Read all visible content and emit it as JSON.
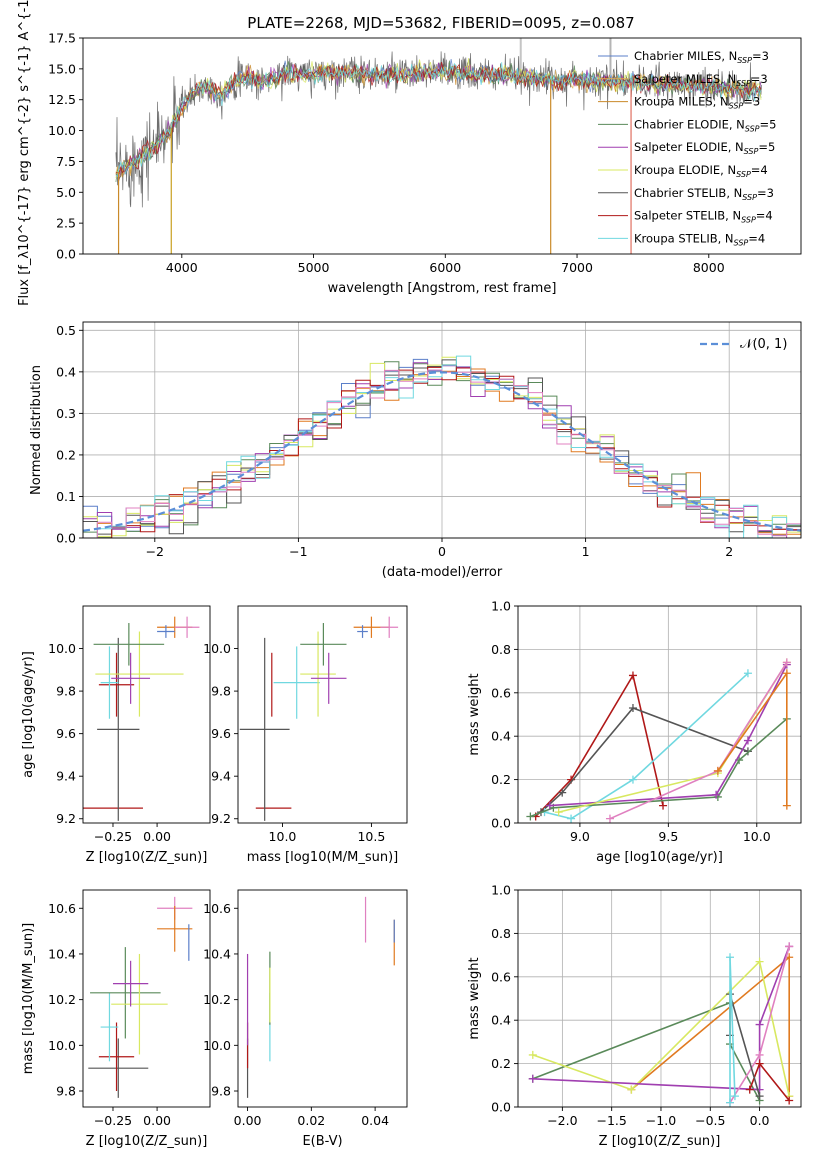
{
  "colors": {
    "Chabrier MILES": "#5b7fc9",
    "Salpeter MILES": "#e0b050",
    "Kroupa MILES": "#c98a2a",
    "Chabrier ELODIE": "#5a8a5a",
    "Salpeter ELODIE": "#a03fb0",
    "Kroupa ELODIE": "#d8e860",
    "Chabrier STELIB": "#555555",
    "Salpeter STELIB": "#b01818",
    "Kroupa STELIB": "#70d8e0",
    "pink": "#e080c0",
    "orange": "#e07a20",
    "normal": "#5b8fd8"
  },
  "chart_data": [
    {
      "id": "spectrum",
      "type": "line",
      "title": "PLATE=2268, MJD=53682, FIBERID=0095, z=0.087",
      "xlabel": "wavelength [Angstrom, rest frame]",
      "ylabel": "Flux [f_λ10^{-17} erg cm^{-2} s^{-1} A^{-1}]",
      "xlim": [
        3250,
        8700
      ],
      "ylim": [
        0,
        17.5
      ],
      "xticks": [
        "4000",
        "5000",
        "6000",
        "7000",
        "8000"
      ],
      "yticks": [
        "0.0",
        "2.5",
        "5.0",
        "7.5",
        "10.0",
        "12.5",
        "15.0",
        "17.5"
      ],
      "legend_position": "right",
      "series": [
        {
          "name": "Chabrier MILES, N",
          "sub": "SSP",
          "suffix": "=3"
        },
        {
          "name": "Salpeter MILES, N",
          "sub": "SSP",
          "suffix": "=3"
        },
        {
          "name": "Kroupa MILES, N",
          "sub": "SSP",
          "suffix": "=3"
        },
        {
          "name": "Chabrier ELODIE, N",
          "sub": "SSP",
          "suffix": "=5"
        },
        {
          "name": "Salpeter ELODIE, N",
          "sub": "SSP",
          "suffix": "=5"
        },
        {
          "name": "Kroupa ELODIE, N",
          "sub": "SSP",
          "suffix": "=4"
        },
        {
          "name": "Chabrier STELIB, N",
          "sub": "SSP",
          "suffix": "=3"
        },
        {
          "name": "Salpeter STELIB, N",
          "sub": "SSP",
          "suffix": "=4"
        },
        {
          "name": "Kroupa STELIB, N",
          "sub": "SSP",
          "suffix": "=4"
        }
      ],
      "envelope": {
        "x": [
          3500,
          3600,
          3700,
          3800,
          3900,
          4000,
          4100,
          4200,
          4300,
          4400,
          4500,
          4600,
          4700,
          4800,
          4900,
          5000,
          5200,
          5400,
          5600,
          5800,
          6000,
          6200,
          6400,
          6600,
          6800,
          7000,
          7200,
          7400,
          7600,
          7800,
          8000,
          8200,
          8400
        ],
        "y": [
          6.5,
          7.2,
          8.0,
          8.8,
          9.8,
          11.8,
          13.2,
          13.6,
          12.8,
          14.0,
          14.3,
          13.9,
          14.3,
          14.7,
          14.5,
          14.6,
          14.7,
          14.6,
          14.5,
          14.6,
          14.8,
          14.6,
          14.5,
          14.4,
          14.1,
          14.1,
          14.0,
          13.9,
          13.8,
          13.7,
          13.6,
          13.4,
          13.2
        ]
      },
      "drops": [
        3520,
        3920,
        6800,
        7410
      ]
    },
    {
      "id": "residuals",
      "type": "line",
      "xlabel": "(data-model)/error",
      "ylabel": "Normed distribution",
      "xlim": [
        -2.5,
        2.5
      ],
      "ylim": [
        0,
        0.52
      ],
      "xticks": [
        "−2",
        "−1",
        "0",
        "1",
        "2"
      ],
      "yticks": [
        "0.0",
        "0.1",
        "0.2",
        "0.3",
        "0.4",
        "0.5"
      ],
      "legend": "𝒩(0, 1)",
      "legend_position": "top-right",
      "grid": true,
      "bin_width": 0.1
    },
    {
      "id": "age-vs-Z",
      "type": "scatter",
      "xlabel": "Z [log10(Z/Z_sun)]",
      "ylabel": "age [log10(age/yr)]",
      "xlim": [
        -0.42,
        0.3
      ],
      "ylim": [
        9.18,
        10.2
      ],
      "xticks": [
        "−0.25",
        "0.00"
      ],
      "yticks": [
        "9.2",
        "9.4",
        "9.6",
        "9.8",
        "10.0"
      ],
      "points": [
        {
          "x": -0.25,
          "y": 9.25,
          "ex": 0.17,
          "ey": 0,
          "color": "Salpeter STELIB"
        },
        {
          "x": -0.22,
          "y": 9.62,
          "ex": 0.12,
          "ey": 0.43,
          "color": "Chabrier STELIB"
        },
        {
          "x": -0.23,
          "y": 9.83,
          "ex": 0.1,
          "ey": 0.15,
          "color": "Salpeter STELIB"
        },
        {
          "x": -0.27,
          "y": 9.84,
          "ex": 0.05,
          "ey": 0.17,
          "color": "Kroupa STELIB"
        },
        {
          "x": -0.1,
          "y": 9.88,
          "ex": 0.25,
          "ey": 0.2,
          "color": "Kroupa ELODIE"
        },
        {
          "x": -0.15,
          "y": 9.86,
          "ex": 0.11,
          "ey": 0.12,
          "color": "Salpeter ELODIE"
        },
        {
          "x": -0.16,
          "y": 10.02,
          "ex": 0.2,
          "ey": 0.1,
          "color": "Chabrier ELODIE"
        },
        {
          "x": 0.1,
          "y": 10.1,
          "ex": 0.1,
          "ey": 0.05,
          "color": "orange"
        },
        {
          "x": 0.17,
          "y": 10.1,
          "ex": 0.07,
          "ey": 0.05,
          "color": "pink"
        },
        {
          "x": 0.05,
          "y": 10.08,
          "ex": 0.05,
          "ey": 0.03,
          "color": "Chabrier MILES"
        }
      ]
    },
    {
      "id": "age-vs-mass",
      "type": "scatter",
      "xlabel": "mass [log10(M/M_sun)]",
      "xlim": [
        9.75,
        10.7
      ],
      "ylim": [
        9.18,
        10.2
      ],
      "xticks": [
        "10.0",
        "10.5"
      ],
      "yticks": [
        "9.2",
        "9.4",
        "9.6",
        "9.8",
        "10.0"
      ],
      "points": [
        {
          "x": 9.95,
          "y": 9.25,
          "ex": 0.1,
          "ey": 0,
          "color": "Salpeter STELIB"
        },
        {
          "x": 9.9,
          "y": 9.62,
          "ex": 0.14,
          "ey": 0.43,
          "color": "Chabrier STELIB"
        },
        {
          "x": 9.94,
          "y": 9.83,
          "ex": 0.0,
          "ey": 0.15,
          "color": "Salpeter STELIB"
        },
        {
          "x": 10.08,
          "y": 9.84,
          "ex": 0.13,
          "ey": 0.17,
          "color": "Kroupa STELIB"
        },
        {
          "x": 10.2,
          "y": 9.88,
          "ex": 0.1,
          "ey": 0.2,
          "color": "Kroupa ELODIE"
        },
        {
          "x": 10.26,
          "y": 9.86,
          "ex": 0.1,
          "ey": 0.12,
          "color": "Salpeter ELODIE"
        },
        {
          "x": 10.23,
          "y": 10.02,
          "ex": 0.13,
          "ey": 0.1,
          "color": "Chabrier ELODIE"
        },
        {
          "x": 10.5,
          "y": 10.1,
          "ex": 0.1,
          "ey": 0.05,
          "color": "orange"
        },
        {
          "x": 10.6,
          "y": 10.1,
          "ex": 0.05,
          "ey": 0.05,
          "color": "pink"
        },
        {
          "x": 10.45,
          "y": 10.08,
          "ex": 0.03,
          "ey": 0.03,
          "color": "Chabrier MILES"
        }
      ]
    },
    {
      "id": "massweight-vs-age",
      "type": "line",
      "xlabel": "age [log10(age/yr)]",
      "ylabel": "mass weight",
      "xlim": [
        8.65,
        10.25
      ],
      "ylim": [
        0,
        1.0
      ],
      "xticks": [
        "9.0",
        "9.5",
        "10.0"
      ],
      "yticks": [
        "0.0",
        "0.2",
        "0.4",
        "0.6",
        "0.8",
        "1.0"
      ],
      "grid": true,
      "series": [
        {
          "color": "Salpeter STELIB",
          "x": [
            8.75,
            8.95,
            9.3,
            9.47
          ],
          "y": [
            0.03,
            0.2,
            0.68,
            0.08
          ]
        },
        {
          "color": "Chabrier STELIB",
          "x": [
            8.78,
            8.9,
            9.3,
            9.95
          ],
          "y": [
            0.05,
            0.14,
            0.53,
            0.33
          ]
        },
        {
          "color": "Kroupa STELIB",
          "x": [
            8.8,
            8.95,
            9.3,
            9.95
          ],
          "y": [
            0.05,
            0.02,
            0.2,
            0.69
          ]
        },
        {
          "color": "Chabrier ELODIE",
          "x": [
            8.72,
            8.85,
            9.78,
            9.9,
            10.17
          ],
          "y": [
            0.03,
            0.07,
            0.12,
            0.29,
            0.48
          ]
        },
        {
          "color": "Salpeter ELODIE",
          "x": [
            8.83,
            9.77,
            9.95,
            10.17
          ],
          "y": [
            0.08,
            0.13,
            0.38,
            0.73
          ]
        },
        {
          "color": "Kroupa ELODIE",
          "x": [
            8.88,
            9.78,
            10.17
          ],
          "y": [
            0.05,
            0.23,
            0.74
          ]
        },
        {
          "color": "pink",
          "x": [
            9.17,
            9.78,
            10.17
          ],
          "y": [
            0.02,
            0.24,
            0.74
          ]
        },
        {
          "color": "orange",
          "x": [
            9.78,
            10.17,
            10.17
          ],
          "y": [
            0.24,
            0.69,
            0.08
          ]
        }
      ]
    },
    {
      "id": "mass-vs-Z",
      "type": "scatter",
      "xlabel": "Z [log10(Z/Z_sun)]",
      "ylabel": "mass [log10(M/M_sun)]",
      "xlim": [
        -0.42,
        0.3
      ],
      "ylim": [
        9.73,
        10.68
      ],
      "xticks": [
        "−0.25",
        "0.00"
      ],
      "yticks": [
        "9.8",
        "10.0",
        "10.2",
        "10.4",
        "10.6"
      ],
      "points": [
        {
          "x": -0.22,
          "y": 9.9,
          "ex": 0.17,
          "ey": 0.13,
          "color": "Chabrier STELIB"
        },
        {
          "x": -0.23,
          "y": 9.95,
          "ex": 0.1,
          "ey": 0.15,
          "color": "Salpeter STELIB"
        },
        {
          "x": -0.27,
          "y": 10.08,
          "ex": 0.05,
          "ey": 0.15,
          "color": "Kroupa STELIB"
        },
        {
          "x": -0.18,
          "y": 10.23,
          "ex": 0.2,
          "ey": 0.2,
          "color": "Chabrier ELODIE"
        },
        {
          "x": -0.1,
          "y": 10.18,
          "ex": 0.16,
          "ey": 0.22,
          "color": "Kroupa ELODIE"
        },
        {
          "x": -0.15,
          "y": 10.27,
          "ex": 0.1,
          "ey": 0.1,
          "color": "Salpeter ELODIE"
        },
        {
          "x": 0.1,
          "y": 10.6,
          "ex": 0.1,
          "ey": 0.05,
          "color": "pink"
        },
        {
          "x": 0.1,
          "y": 10.51,
          "ex": 0.1,
          "ey": 0.1,
          "color": "orange"
        },
        {
          "x": 0.18,
          "y": 10.45,
          "ex": 0.0,
          "ey": 0.08,
          "color": "Chabrier MILES"
        }
      ]
    },
    {
      "id": "mass-vs-EBV",
      "type": "scatter",
      "xlabel": "E(B-V)",
      "xlim": [
        -0.003,
        0.05
      ],
      "ylim": [
        9.73,
        10.68
      ],
      "xticks": [
        "0.00",
        "0.02",
        "0.04"
      ],
      "yticks": [
        "9.8",
        "10.0",
        "10.2",
        "10.4",
        "10.6"
      ],
      "points": [
        {
          "x": 0.0,
          "y": 9.9,
          "ex": 0,
          "ey": 0.13,
          "color": "Chabrier STELIB"
        },
        {
          "x": 0.0,
          "y": 10.0,
          "ex": 0,
          "ey": 0.1,
          "color": "Salpeter STELIB"
        },
        {
          "x": 0.0,
          "y": 10.2,
          "ex": 0,
          "ey": 0.2,
          "color": "Salpeter ELODIE"
        },
        {
          "x": 0.007,
          "y": 10.08,
          "ex": 0,
          "ey": 0.15,
          "color": "Kroupa STELIB"
        },
        {
          "x": 0.007,
          "y": 10.25,
          "ex": 0,
          "ey": 0.16,
          "color": "Chabrier ELODIE"
        },
        {
          "x": 0.007,
          "y": 10.22,
          "ex": 0,
          "ey": 0.12,
          "color": "Kroupa ELODIE"
        },
        {
          "x": 0.037,
          "y": 10.55,
          "ex": 0,
          "ey": 0.1,
          "color": "pink"
        },
        {
          "x": 0.046,
          "y": 10.45,
          "ex": 0,
          "ey": 0.1,
          "color": "orange"
        },
        {
          "x": 0.046,
          "y": 10.5,
          "ex": 0,
          "ey": 0.05,
          "color": "Chabrier MILES"
        }
      ]
    },
    {
      "id": "massweight-vs-Z",
      "type": "line",
      "xlabel": "Z [log10(Z/Z_sun)]",
      "ylabel": "mass weight",
      "xlim": [
        -2.45,
        0.42
      ],
      "ylim": [
        0,
        1.0
      ],
      "xticks": [
        "−2.0",
        "−1.5",
        "−1.0",
        "−0.5",
        "0.0"
      ],
      "yticks": [
        "0.0",
        "0.2",
        "0.4",
        "0.6",
        "0.8",
        "1.0"
      ],
      "grid": true,
      "series": [
        {
          "color": "Chabrier ELODIE",
          "x": [
            -2.3,
            -0.3,
            -0.3,
            0.0
          ],
          "y": [
            0.13,
            0.48,
            0.29,
            0.03
          ]
        },
        {
          "color": "orange",
          "x": [
            -1.3,
            0.3,
            0.3
          ],
          "y": [
            0.08,
            0.69,
            0.05
          ]
        },
        {
          "color": "Kroupa ELODIE",
          "x": [
            -2.3,
            -1.3,
            0.0,
            0.3
          ],
          "y": [
            0.24,
            0.08,
            0.67,
            0.05
          ]
        },
        {
          "color": "Salpeter ELODIE",
          "x": [
            -2.3,
            0.0,
            0.0,
            0.3
          ],
          "y": [
            0.13,
            0.08,
            0.38,
            0.74
          ]
        },
        {
          "color": "pink",
          "x": [
            -0.3,
            0.0,
            0.3
          ],
          "y": [
            0.02,
            0.24,
            0.74
          ]
        },
        {
          "color": "Salpeter STELIB",
          "x": [
            -0.1,
            0.0,
            0.3
          ],
          "y": [
            0.08,
            0.2,
            0.03
          ]
        },
        {
          "color": "Chabrier STELIB",
          "x": [
            -0.3,
            -0.3,
            0.0
          ],
          "y": [
            0.33,
            0.52,
            0.05
          ]
        },
        {
          "color": "Kroupa STELIB",
          "x": [
            -0.3,
            -0.3,
            -0.25
          ],
          "y": [
            0.02,
            0.69,
            0.05
          ]
        }
      ]
    }
  ]
}
